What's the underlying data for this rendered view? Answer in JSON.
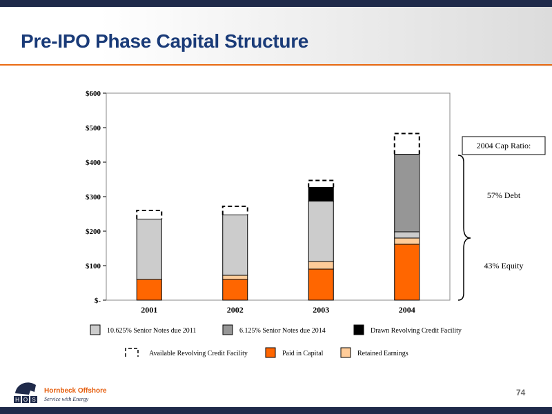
{
  "slide": {
    "title": "Pre-IPO Phase Capital Structure",
    "page_number": "74"
  },
  "logo": {
    "name": "Hornbeck Offshore",
    "tagline": "Service with Energy",
    "mark": "HOS"
  },
  "callouts": {
    "cap_ratio_label": "2004 Cap Ratio:",
    "debt_label": "57% Debt",
    "equity_label": "43% Equity"
  },
  "colors": {
    "paid_in_capital": "#ff6600",
    "retained_earnings": "#ffcc99",
    "senior_notes_2011": "#cccccc",
    "senior_notes_2014": "#969696",
    "drawn_revolver": "#000000",
    "accent": "#ea6a12",
    "title": "#1a3b78"
  },
  "chart_data": {
    "type": "bar",
    "stacked": true,
    "categories": [
      "2001",
      "2002",
      "2003",
      "2004"
    ],
    "ylim": [
      0,
      600
    ],
    "yticks": [
      0,
      100,
      200,
      300,
      400,
      500,
      600
    ],
    "ytick_labels": [
      "$-",
      "$100",
      "$200",
      "$300",
      "$400",
      "$500",
      "$600"
    ],
    "series": [
      {
        "name": "Paid in Capital",
        "key": "paid_in_capital",
        "values": [
          60,
          60,
          90,
          162
        ]
      },
      {
        "name": "Retained Earnings",
        "key": "retained_earnings",
        "values": [
          0,
          12,
          22,
          18
        ]
      },
      {
        "name": "10.625% Senior Notes due 2011",
        "key": "senior_notes_2011",
        "values": [
          175,
          175,
          175,
          18
        ]
      },
      {
        "name": "6.125% Senior Notes due 2014",
        "key": "senior_notes_2014",
        "values": [
          0,
          0,
          0,
          225
        ]
      },
      {
        "name": "Drawn Revolving Credit Facility",
        "key": "drawn_revolver",
        "values": [
          0,
          0,
          40,
          0
        ]
      },
      {
        "name": "Available Revolving Credit Facility",
        "key": "available_revolver",
        "values": [
          25,
          25,
          20,
          60
        ],
        "style": "dashed"
      }
    ],
    "legend": {
      "placement": "bottom",
      "rows": [
        [
          "senior_notes_2011",
          "senior_notes_2014",
          "drawn_revolver"
        ],
        [
          "available_revolver",
          "paid_in_capital",
          "retained_earnings"
        ]
      ]
    },
    "grid": false
  }
}
